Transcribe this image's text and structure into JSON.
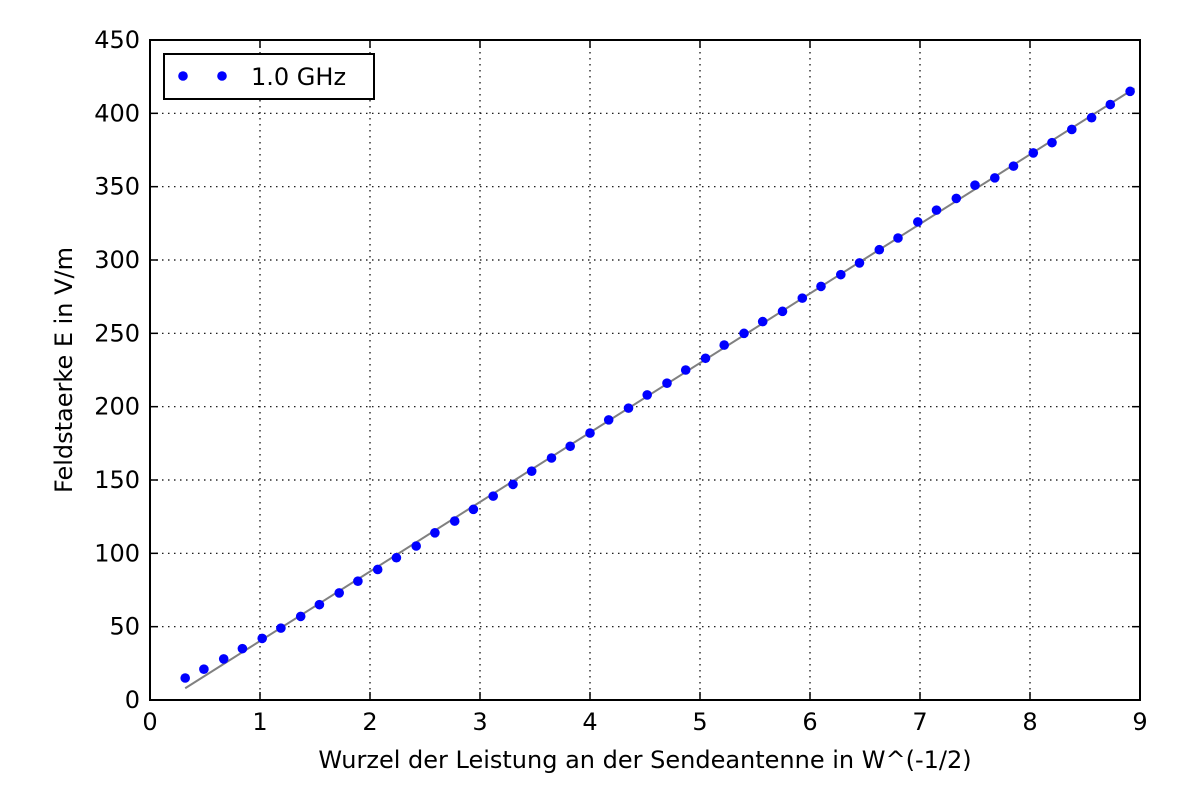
{
  "chart_data": {
    "type": "scatter",
    "title": "",
    "xlabel": "Wurzel der Leistung an der Sendeantenne in W^(-1/2)",
    "ylabel": "Feldstaerke E in V/m",
    "xlim": [
      0,
      9
    ],
    "ylim": [
      0,
      450
    ],
    "xticks": [
      "0",
      "1",
      "2",
      "3",
      "4",
      "5",
      "6",
      "7",
      "8",
      "9"
    ],
    "yticks": [
      "0",
      "50",
      "100",
      "150",
      "200",
      "250",
      "300",
      "350",
      "400",
      "450"
    ],
    "grid": true,
    "grid_style": "dotted",
    "legend": {
      "position": "top-left",
      "entries": [
        {
          "label": "1.0 GHz",
          "marker": "dots",
          "color": "#0000ff"
        }
      ]
    },
    "series": [
      {
        "name": "1.0 GHz",
        "style": "markers",
        "color": "#0000ff",
        "x": [
          0.32,
          0.49,
          0.67,
          0.84,
          1.02,
          1.19,
          1.37,
          1.54,
          1.72,
          1.89,
          2.07,
          2.24,
          2.42,
          2.59,
          2.77,
          2.94,
          3.12,
          3.3,
          3.47,
          3.65,
          3.82,
          4.0,
          4.17,
          4.35,
          4.52,
          4.7,
          4.87,
          5.05,
          5.22,
          5.4,
          5.57,
          5.75,
          5.93,
          6.1,
          6.28,
          6.45,
          6.63,
          6.8,
          6.98,
          7.15,
          7.33,
          7.5,
          7.68,
          7.85,
          8.03,
          8.2,
          8.38,
          8.56,
          8.73,
          8.91
        ],
        "y": [
          15,
          21,
          28,
          35,
          42,
          49,
          57,
          65,
          73,
          81,
          89,
          97,
          105,
          114,
          122,
          130,
          139,
          147,
          156,
          165,
          173,
          182,
          191,
          199,
          208,
          216,
          225,
          233,
          242,
          250,
          258,
          265,
          274,
          282,
          290,
          298,
          307,
          315,
          326,
          334,
          342,
          351,
          356,
          364,
          373,
          380,
          389,
          397,
          406,
          415
        ]
      },
      {
        "name": "",
        "style": "line",
        "color": "#808080",
        "x": [
          0.32,
          8.95
        ],
        "y": [
          8,
          417
        ]
      }
    ]
  }
}
